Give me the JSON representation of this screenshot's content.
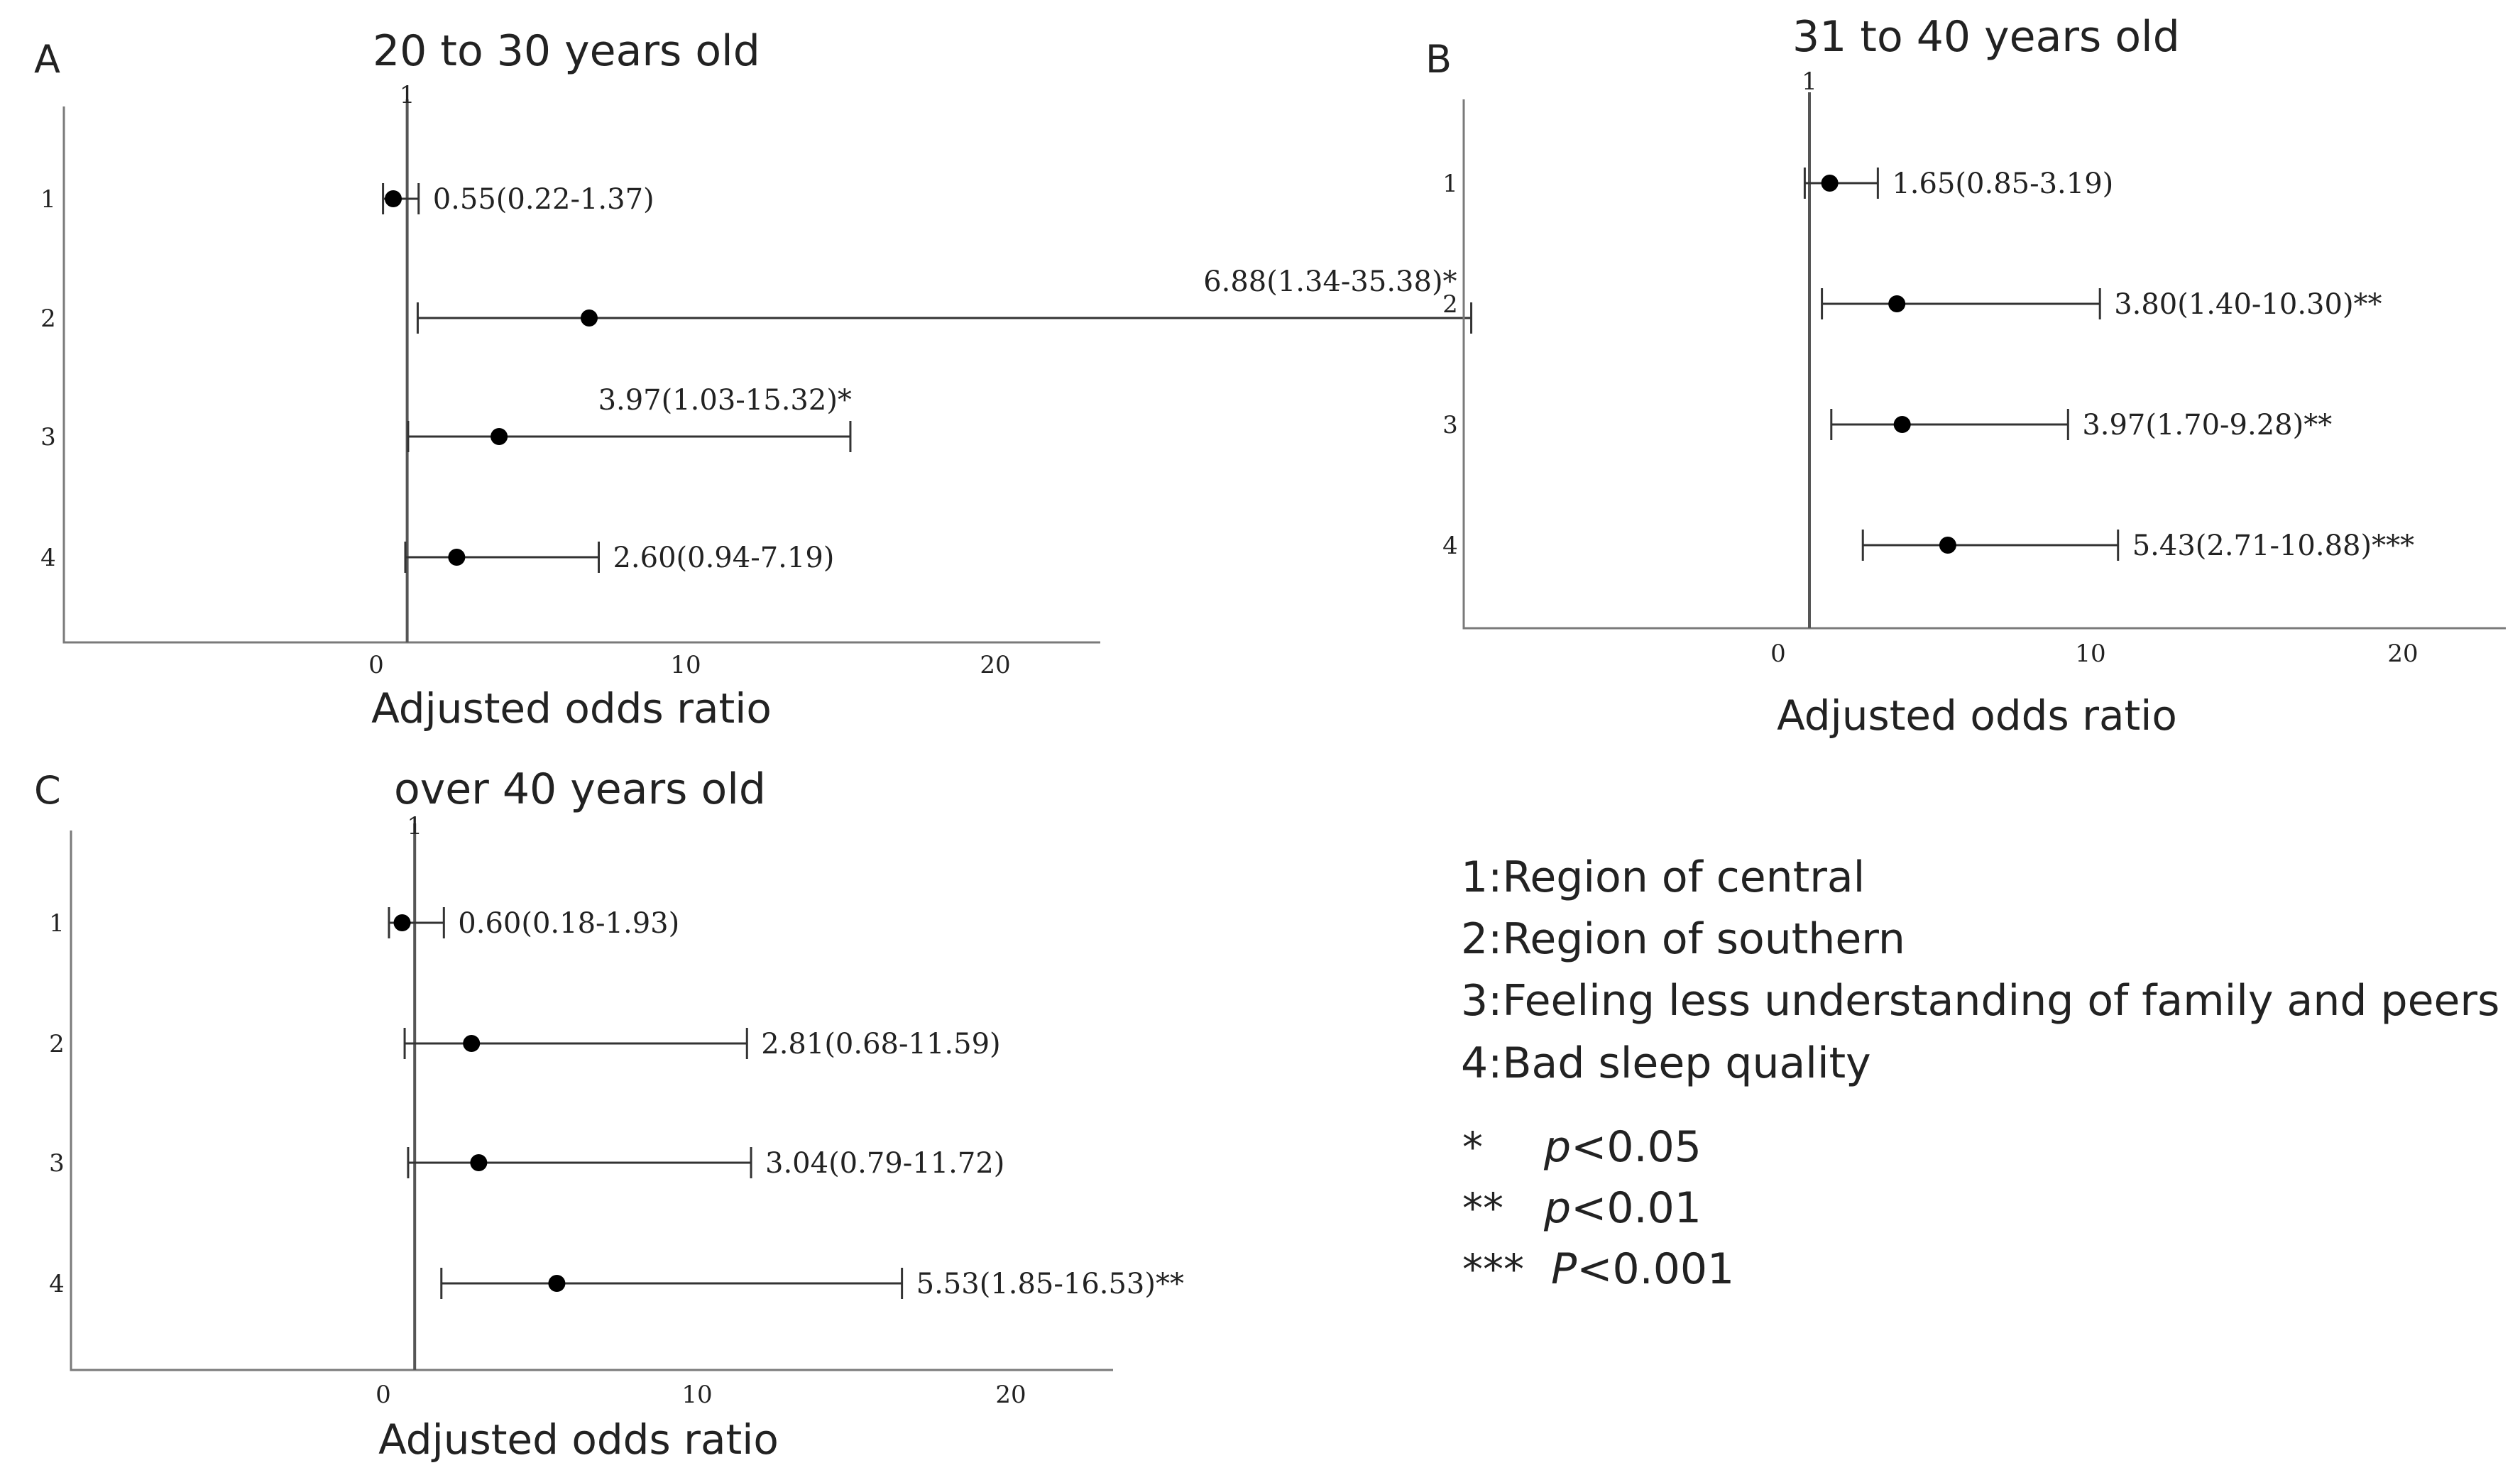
{
  "chart_data": [
    {
      "type": "forest",
      "panel_letter": "A",
      "title": "20 to 30 years old",
      "xlabel": "Adjusted odds ratio",
      "xticks": [
        0,
        10,
        20
      ],
      "ref_value": 1,
      "ref_label": "1",
      "categories": [
        "1",
        "2",
        "3",
        "4"
      ],
      "points": [
        {
          "category": "1",
          "or": 0.55,
          "lo": 0.22,
          "hi": 1.37,
          "label": "0.55(0.22-1.37)"
        },
        {
          "category": "2",
          "or": 6.88,
          "lo": 1.34,
          "hi": 35.38,
          "label": "6.88(1.34-35.38)*"
        },
        {
          "category": "3",
          "or": 3.97,
          "lo": 1.03,
          "hi": 15.32,
          "label": "3.97(1.03-15.32)*"
        },
        {
          "category": "4",
          "or": 2.6,
          "lo": 0.94,
          "hi": 7.19,
          "label": "2.60(0.94-7.19)"
        }
      ]
    },
    {
      "type": "forest",
      "panel_letter": "B",
      "title": "31 to 40 years old",
      "xlabel": "Adjusted odds ratio",
      "xticks": [
        0,
        10,
        20
      ],
      "ref_value": 1,
      "ref_label": "1",
      "categories": [
        "1",
        "2",
        "3",
        "4"
      ],
      "points": [
        {
          "category": "1",
          "or": 1.65,
          "lo": 0.85,
          "hi": 3.19,
          "label": "1.65(0.85-3.19)"
        },
        {
          "category": "2",
          "or": 3.8,
          "lo": 1.4,
          "hi": 10.3,
          "label": "3.80(1.40-10.30)**"
        },
        {
          "category": "3",
          "or": 3.97,
          "lo": 1.7,
          "hi": 9.28,
          "label": "3.97(1.70-9.28)**"
        },
        {
          "category": "4",
          "or": 5.43,
          "lo": 2.71,
          "hi": 10.88,
          "label": "5.43(2.71-10.88)***"
        }
      ]
    },
    {
      "type": "forest",
      "panel_letter": "C",
      "title": "over 40 years old",
      "xlabel": "Adjusted odds ratio",
      "xticks": [
        0,
        10,
        20
      ],
      "ref_value": 1,
      "ref_label": "1",
      "categories": [
        "1",
        "2",
        "3",
        "4"
      ],
      "points": [
        {
          "category": "1",
          "or": 0.6,
          "lo": 0.18,
          "hi": 1.93,
          "label": "0.60(0.18-1.93)"
        },
        {
          "category": "2",
          "or": 2.81,
          "lo": 0.68,
          "hi": 11.59,
          "label": "2.81(0.68-11.59)"
        },
        {
          "category": "3",
          "or": 3.04,
          "lo": 0.79,
          "hi": 11.72,
          "label": "3.04(0.79-11.72)"
        },
        {
          "category": "4",
          "or": 5.53,
          "lo": 1.85,
          "hi": 16.53,
          "label": "5.53(1.85-16.53)**"
        }
      ]
    }
  ],
  "legend": {
    "items": [
      "1:Region of central",
      "2:Region of southern",
      "3:Feeling less understanding of family and peers",
      "4:Bad sleep quality"
    ],
    "significance": [
      {
        "symbol": "*",
        "p": "p",
        "rest": "<0.05"
      },
      {
        "symbol": "**",
        "p": "p",
        "rest": "<0.01"
      },
      {
        "symbol": "***",
        "p": "P",
        "rest": "<0.001"
      }
    ]
  }
}
